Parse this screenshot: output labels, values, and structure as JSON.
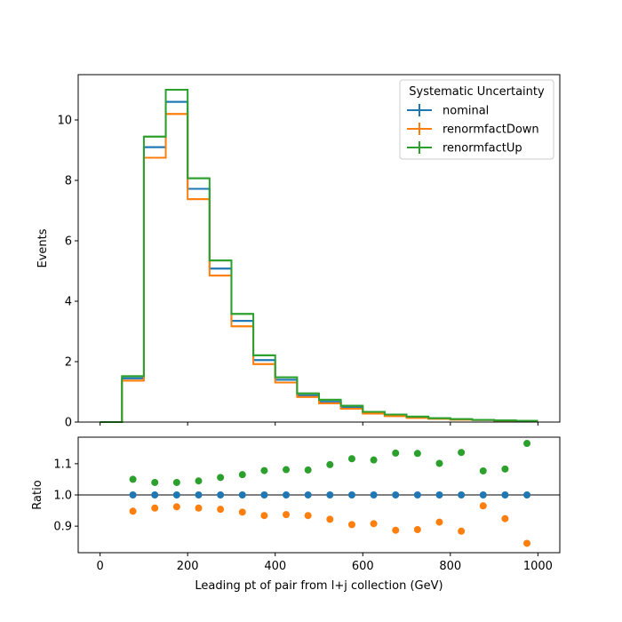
{
  "chart_data": [
    {
      "type": "histogram-step",
      "panel": "main",
      "xlabel": "",
      "ylabel": "Events",
      "xlim": [
        -50,
        1050
      ],
      "ylim": [
        0,
        11.5
      ],
      "xticks": [
        0,
        200,
        400,
        600,
        800,
        1000
      ],
      "yticks": [
        0,
        2,
        4,
        6,
        8,
        10
      ],
      "bin_edges": [
        0,
        50,
        100,
        150,
        200,
        250,
        300,
        350,
        400,
        450,
        500,
        550,
        600,
        650,
        700,
        750,
        800,
        850,
        900,
        950,
        1000
      ],
      "legend": {
        "title": "Systematic Uncertainty",
        "placement": "top-right"
      },
      "series": [
        {
          "name": "nominal",
          "color": "#1f77b4",
          "values": [
            0.0,
            1.45,
            9.1,
            10.6,
            7.72,
            5.08,
            3.35,
            2.05,
            1.4,
            0.88,
            0.67,
            0.48,
            0.3,
            0.22,
            0.16,
            0.12,
            0.09,
            0.07,
            0.05,
            0.04
          ]
        },
        {
          "name": "renormfactDown",
          "color": "#ff7f0e",
          "values": [
            0.0,
            1.37,
            8.75,
            10.2,
            7.38,
            4.85,
            3.17,
            1.92,
            1.31,
            0.83,
            0.62,
            0.44,
            0.28,
            0.2,
            0.14,
            0.11,
            0.08,
            0.07,
            0.05,
            0.03
          ]
        },
        {
          "name": "renormfactUp",
          "color": "#2ca02c",
          "values": [
            0.0,
            1.52,
            9.45,
            11.0,
            8.07,
            5.35,
            3.58,
            2.21,
            1.48,
            0.95,
            0.74,
            0.54,
            0.34,
            0.25,
            0.18,
            0.13,
            0.1,
            0.075,
            0.055,
            0.045
          ]
        }
      ]
    },
    {
      "type": "scatter",
      "panel": "ratio",
      "xlabel": "Leading pt of pair from l+j collection (GeV)",
      "ylabel": "Ratio",
      "xlim": [
        -50,
        1050
      ],
      "ylim": [
        0.815,
        1.185
      ],
      "xticks": [
        0,
        200,
        400,
        600,
        800,
        1000
      ],
      "yticks": [
        0.9,
        1.0,
        1.1
      ],
      "reference_line": 1.0,
      "x": [
        75,
        125,
        175,
        225,
        275,
        325,
        375,
        425,
        475,
        525,
        575,
        625,
        675,
        725,
        775,
        825,
        875,
        925,
        975
      ],
      "series": [
        {
          "name": "nominal",
          "color": "#1f77b4",
          "values": [
            1.0,
            1.0,
            1.0,
            1.0,
            1.0,
            1.0,
            1.0,
            1.0,
            1.0,
            1.0,
            1.0,
            1.0,
            1.0,
            1.0,
            1.0,
            1.0,
            1.0,
            1.0,
            1.0
          ]
        },
        {
          "name": "renormfactDown",
          "color": "#ff7f0e",
          "values": [
            0.948,
            0.958,
            0.962,
            0.958,
            0.954,
            0.945,
            0.934,
            0.937,
            0.934,
            0.922,
            0.905,
            0.908,
            0.887,
            0.889,
            0.913,
            0.884,
            0.965,
            0.924,
            0.845
          ]
        },
        {
          "name": "renormfactUp",
          "color": "#2ca02c",
          "values": [
            1.05,
            1.04,
            1.04,
            1.045,
            1.056,
            1.065,
            1.078,
            1.081,
            1.08,
            1.097,
            1.116,
            1.112,
            1.134,
            1.133,
            1.101,
            1.136,
            1.077,
            1.083,
            1.165
          ]
        }
      ]
    }
  ]
}
